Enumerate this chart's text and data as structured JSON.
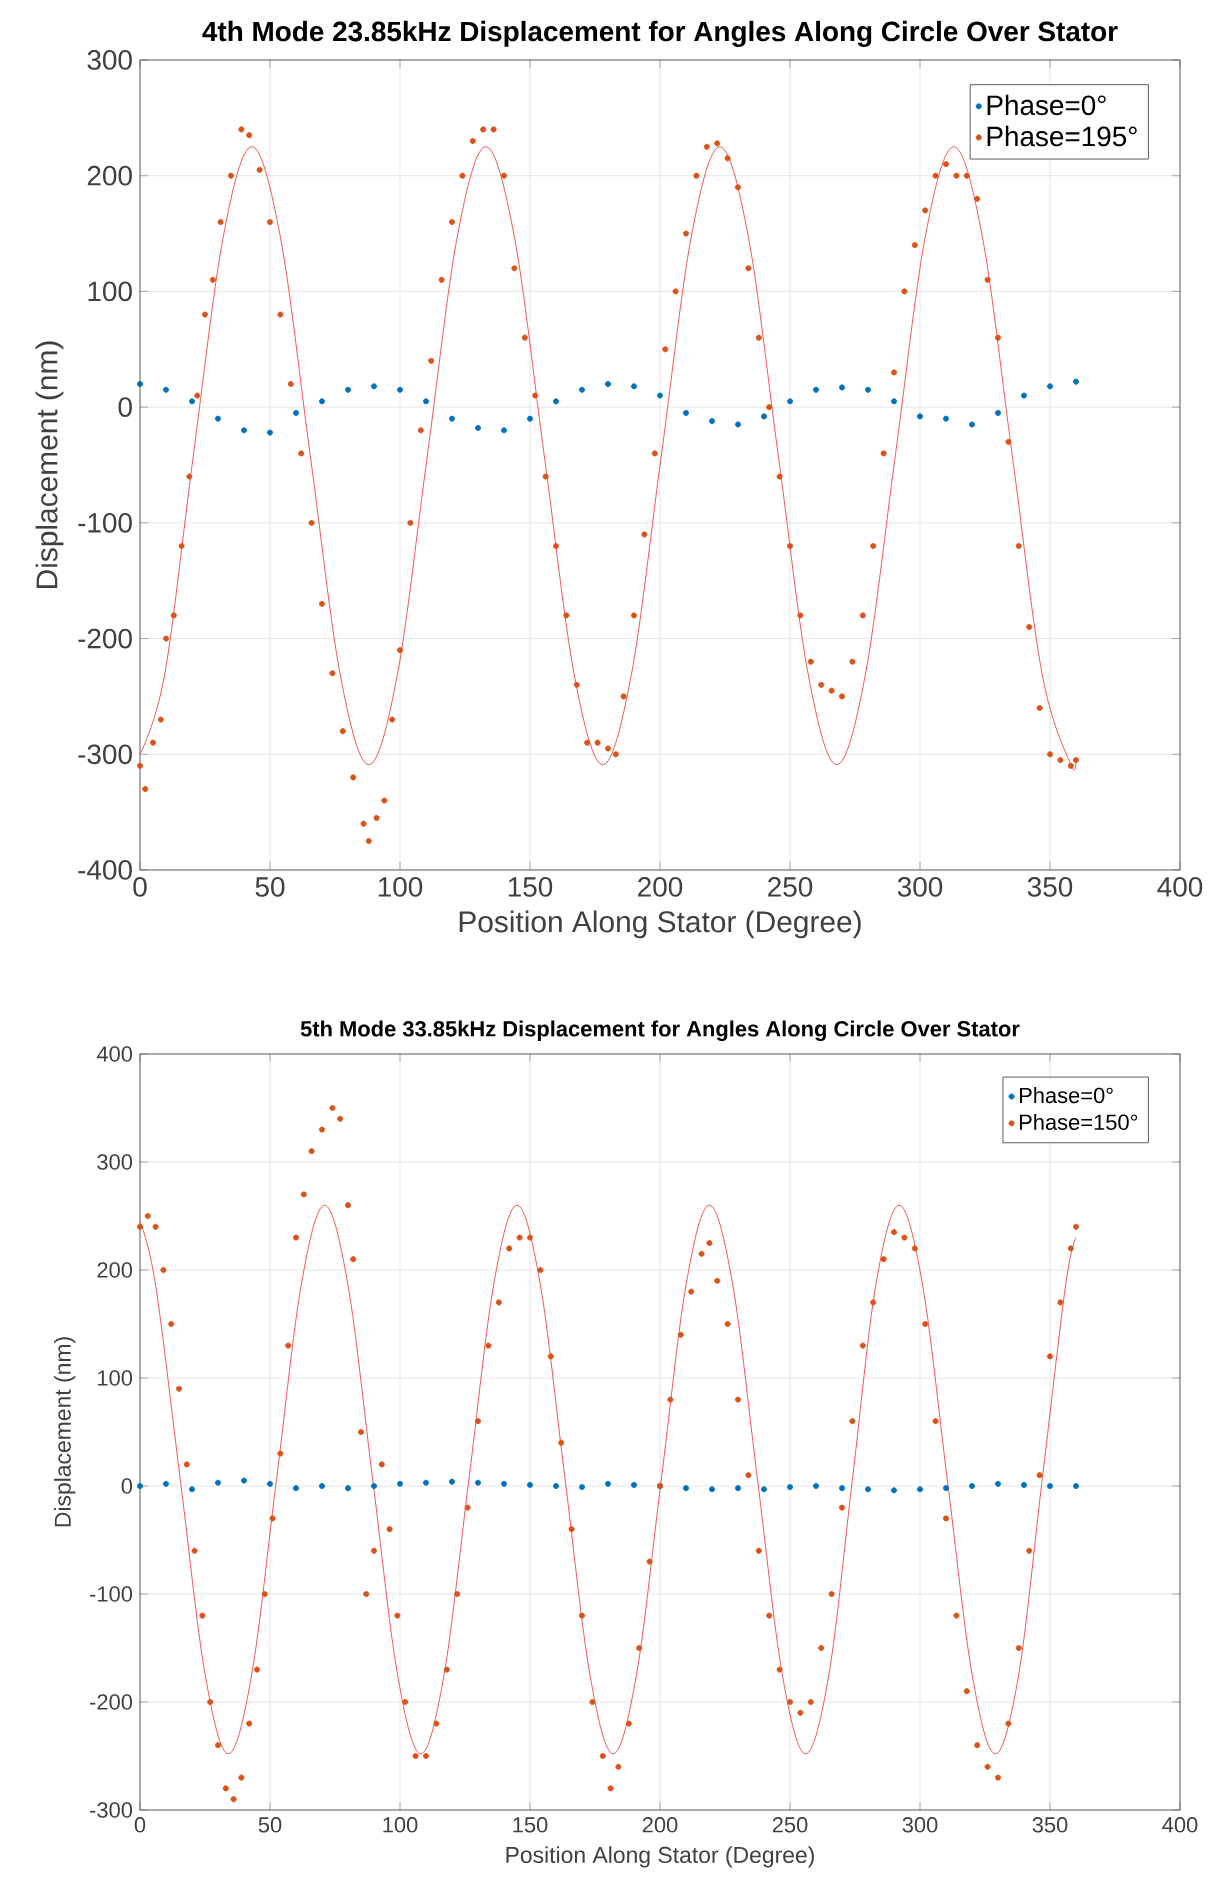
{
  "chart_data": [
    {
      "type": "scatter",
      "title": "4th Mode 23.85kHz Displacement for Angles Along Circle Over Stator",
      "xlabel": "Position Along Stator (Degree)",
      "ylabel": "Displacement (nm)",
      "xlim": [
        0,
        400
      ],
      "ylim": [
        -400,
        300
      ],
      "xticks": [
        0,
        50,
        100,
        150,
        200,
        250,
        300,
        350,
        400
      ],
      "yticks": [
        -400,
        -300,
        -200,
        -100,
        0,
        100,
        200,
        300
      ],
      "grid": true,
      "legend": "top right",
      "series": [
        {
          "name": "Phase=0°",
          "marker": "circle",
          "color": "#0072bd",
          "x": [
            0,
            10,
            20,
            30,
            40,
            50,
            60,
            70,
            80,
            90,
            100,
            110,
            120,
            130,
            140,
            150,
            160,
            170,
            180,
            190,
            200,
            210,
            220,
            230,
            240,
            250,
            260,
            270,
            280,
            290,
            300,
            310,
            320,
            330,
            340,
            350,
            360
          ],
          "values": [
            20,
            15,
            5,
            -10,
            -20,
            -22,
            -5,
            5,
            15,
            18,
            15,
            5,
            -10,
            -18,
            -20,
            -10,
            5,
            15,
            20,
            18,
            10,
            -5,
            -12,
            -15,
            -8,
            5,
            15,
            17,
            15,
            5,
            -8,
            -10,
            -15,
            -5,
            10,
            18,
            22
          ]
        },
        {
          "name": "Phase=195°",
          "marker": "circle",
          "color": "#d95319",
          "x": [
            0,
            2,
            5,
            8,
            10,
            13,
            16,
            19,
            22,
            25,
            28,
            31,
            35,
            39,
            42,
            46,
            50,
            54,
            58,
            62,
            66,
            70,
            74,
            78,
            82,
            86,
            88,
            91,
            94,
            97,
            100,
            104,
            108,
            112,
            116,
            120,
            124,
            128,
            132,
            136,
            140,
            144,
            148,
            152,
            156,
            160,
            164,
            168,
            172,
            176,
            180,
            183,
            186,
            190,
            194,
            198,
            202,
            206,
            210,
            214,
            218,
            222,
            226,
            230,
            234,
            238,
            242,
            246,
            250,
            254,
            258,
            262,
            266,
            270,
            274,
            278,
            282,
            286,
            290,
            294,
            298,
            302,
            306,
            310,
            314,
            318,
            322,
            326,
            330,
            334,
            338,
            342,
            346,
            350,
            354,
            358,
            360
          ],
          "values": [
            -310,
            -330,
            -290,
            -270,
            -200,
            -180,
            -120,
            -60,
            10,
            80,
            110,
            160,
            200,
            240,
            235,
            205,
            160,
            80,
            20,
            -40,
            -100,
            -170,
            -230,
            -280,
            -320,
            -360,
            -375,
            -355,
            -340,
            -270,
            -210,
            -100,
            -20,
            40,
            110,
            160,
            200,
            230,
            240,
            240,
            200,
            120,
            60,
            10,
            -60,
            -120,
            -180,
            -240,
            -290,
            -290,
            -295,
            -300,
            -250,
            -180,
            -110,
            -40,
            50,
            100,
            150,
            200,
            225,
            228,
            215,
            190,
            120,
            60,
            0,
            -60,
            -120,
            -180,
            -220,
            -240,
            -245,
            -250,
            -220,
            -180,
            -120,
            -40,
            30,
            100,
            140,
            170,
            200,
            210,
            200,
            200,
            180,
            110,
            60,
            -30,
            -120,
            -190,
            -260,
            -300,
            -305,
            -310,
            -305
          ]
        },
        {
          "type": "line",
          "marker": "none",
          "color": "#e8312f",
          "x": [
            0,
            9.5,
            20.5,
            32,
            43,
            54,
            65.5,
            77,
            88,
            99,
            110.5,
            122,
            133,
            144,
            155.5,
            167,
            178,
            189,
            200.5,
            212,
            223,
            234,
            245.5,
            257,
            268,
            279,
            290.5,
            302,
            313,
            324,
            335.5,
            347,
            358,
            360
          ],
          "values": [
            -300,
            -231,
            -42,
            147,
            225,
            147,
            -42,
            -231,
            -309,
            -231,
            -42,
            147,
            225,
            147,
            -42,
            -231,
            -309,
            -231,
            -42,
            147,
            225,
            147,
            -42,
            -231,
            -309,
            -231,
            -42,
            147,
            225,
            147,
            -42,
            -231,
            -309,
            -305
          ]
        }
      ]
    },
    {
      "type": "scatter",
      "title": "5th Mode 33.85kHz Displacement for Angles Along Circle Over Stator",
      "xlabel": "Position Along Stator (Degree)",
      "ylabel": "Displacement (nm)",
      "xlim": [
        0,
        400
      ],
      "ylim": [
        -300,
        400
      ],
      "xticks": [
        0,
        50,
        100,
        150,
        200,
        250,
        300,
        350,
        400
      ],
      "yticks": [
        -300,
        -200,
        -100,
        0,
        100,
        200,
        300,
        400
      ],
      "grid": true,
      "legend": "top right",
      "series": [
        {
          "name": "Phase=0°",
          "marker": "circle",
          "color": "#0072bd",
          "x": [
            0,
            10,
            20,
            30,
            40,
            50,
            60,
            70,
            80,
            90,
            100,
            110,
            120,
            130,
            140,
            150,
            160,
            170,
            180,
            190,
            200,
            210,
            220,
            230,
            240,
            250,
            260,
            270,
            280,
            290,
            300,
            310,
            320,
            330,
            340,
            350,
            360
          ],
          "values": [
            0,
            2,
            -3,
            3,
            5,
            2,
            -2,
            0,
            -2,
            0,
            2,
            3,
            4,
            3,
            2,
            1,
            0,
            -1,
            2,
            1,
            0,
            -2,
            -3,
            -2,
            -3,
            -1,
            0,
            -2,
            -3,
            -4,
            -3,
            -2,
            0,
            2,
            1,
            0,
            0
          ]
        },
        {
          "name": "Phase=150°",
          "marker": "circle",
          "color": "#d95319",
          "x": [
            0,
            3,
            6,
            9,
            12,
            15,
            18,
            21,
            24,
            27,
            30,
            33,
            36,
            39,
            42,
            45,
            48,
            51,
            54,
            57,
            60,
            63,
            66,
            70,
            74,
            77,
            80,
            82,
            85,
            87,
            90,
            93,
            96,
            99,
            102,
            106,
            110,
            114,
            118,
            122,
            126,
            130,
            134,
            138,
            142,
            146,
            150,
            154,
            158,
            162,
            166,
            170,
            174,
            178,
            181,
            184,
            188,
            192,
            196,
            200,
            204,
            208,
            212,
            216,
            219,
            222,
            226,
            230,
            234,
            238,
            242,
            246,
            250,
            254,
            258,
            262,
            266,
            270,
            274,
            278,
            282,
            286,
            290,
            294,
            298,
            302,
            306,
            310,
            314,
            318,
            322,
            326,
            330,
            334,
            338,
            342,
            346,
            350,
            354,
            358,
            360
          ],
          "values": [
            240,
            250,
            240,
            200,
            150,
            90,
            20,
            -60,
            -120,
            -200,
            -240,
            -280,
            -290,
            -270,
            -220,
            -170,
            -100,
            -30,
            30,
            130,
            230,
            270,
            310,
            330,
            350,
            340,
            260,
            210,
            50,
            -100,
            -60,
            20,
            -40,
            -120,
            -200,
            -250,
            -250,
            -220,
            -170,
            -100,
            -20,
            60,
            130,
            170,
            220,
            230,
            230,
            200,
            120,
            40,
            -40,
            -120,
            -200,
            -250,
            -280,
            -260,
            -220,
            -150,
            -70,
            0,
            80,
            140,
            180,
            215,
            225,
            190,
            150,
            80,
            10,
            -60,
            -120,
            -170,
            -200,
            -210,
            -200,
            -150,
            -100,
            -20,
            60,
            130,
            170,
            210,
            235,
            230,
            220,
            150,
            60,
            -30,
            -120,
            -190,
            -240,
            -260,
            -270,
            -220,
            -150,
            -60,
            10,
            120,
            170,
            220,
            240
          ]
        },
        {
          "type": "line",
          "marker": "none",
          "color": "#e8312f",
          "x": [
            0,
            6,
            15.5,
            25,
            34,
            43,
            52.5,
            62,
            71,
            80,
            89.5,
            99,
            108,
            117,
            126.5,
            136,
            145,
            154,
            163.5,
            173,
            182,
            191,
            200.5,
            210,
            219,
            228,
            237.5,
            247,
            256,
            265,
            274,
            283,
            292,
            301,
            310.5,
            320,
            329,
            338,
            347,
            356,
            360
          ],
          "values": [
            245,
            186,
            6,
            -174,
            -248,
            -174,
            6,
            186,
            260,
            186,
            6,
            -174,
            -248,
            -174,
            6,
            186,
            260,
            186,
            6,
            -174,
            -248,
            -174,
            6,
            186,
            260,
            186,
            6,
            -174,
            -248,
            -174,
            6,
            186,
            260,
            186,
            6,
            -174,
            -248,
            -174,
            6,
            186,
            230
          ]
        }
      ]
    }
  ]
}
